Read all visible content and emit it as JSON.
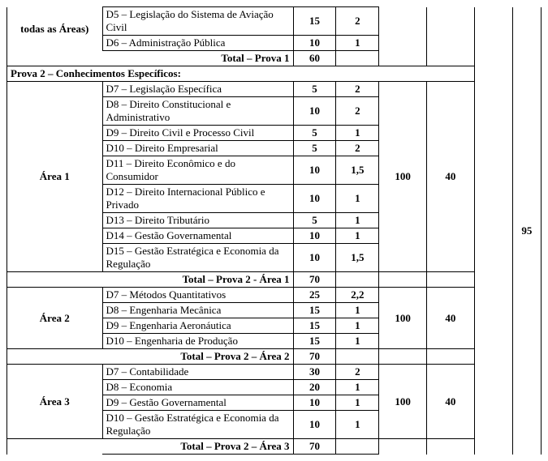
{
  "header_area_label": "todas as Áreas)",
  "prova1": {
    "rows": [
      {
        "desc": "D5 – Legislação do Sistema de Aviação Civil",
        "c1": "15",
        "c2": "2"
      },
      {
        "desc": "D6 – Administração Pública",
        "c1": "10",
        "c2": "1"
      }
    ],
    "total_label": "Total – Prova 1",
    "total_val": "60"
  },
  "prova2_header": "Prova 2 – Conhecimentos Específicos:",
  "area1": {
    "label": "Área 1",
    "rows": [
      {
        "desc": "D7 – Legislação Específica",
        "c1": "5",
        "c2": "2"
      },
      {
        "desc": "D8 – Direito Constitucional e Administrativo",
        "c1": "10",
        "c2": "2"
      },
      {
        "desc": "D9 – Direito Civil e Processo Civil",
        "c1": "5",
        "c2": "1"
      },
      {
        "desc": "D10 – Direito Empresarial",
        "c1": "5",
        "c2": "2"
      },
      {
        "desc": "D11 – Direito Econômico e do Consumidor",
        "c1": "10",
        "c2": "1,5"
      },
      {
        "desc": "D12 – Direito Internacional Público e Privado",
        "c1": "10",
        "c2": "1"
      },
      {
        "desc": "D13 – Direito Tributário",
        "c1": "5",
        "c2": "1"
      },
      {
        "desc": "D14 – Gestão Governamental",
        "c1": "10",
        "c2": "1"
      },
      {
        "desc": "D15 – Gestão Estratégica e Economia da Regulação",
        "c1": "10",
        "c2": "1,5"
      }
    ],
    "c3": "100",
    "c4": "40",
    "total_label": "Total – Prova 2 -  Área 1",
    "total_val": "70"
  },
  "area2": {
    "label": "Área 2",
    "rows": [
      {
        "desc": "D7 – Métodos Quantitativos",
        "c1": "25",
        "c2": "2,2"
      },
      {
        "desc": "D8 – Engenharia Mecânica",
        "c1": "15",
        "c2": "1"
      },
      {
        "desc": "D9 – Engenharia Aeronáutica",
        "c1": "15",
        "c2": "1"
      },
      {
        "desc": "D10 – Engenharia de Produção",
        "c1": "15",
        "c2": "1"
      }
    ],
    "c3": "100",
    "c4": "40",
    "total_label": "Total – Prova 2 – Área 2",
    "total_val": "70"
  },
  "area3": {
    "label": "Área 3",
    "rows": [
      {
        "desc": "D7 – Contabilidade",
        "c1": "30",
        "c2": "2"
      },
      {
        "desc": "D8 – Economia",
        "c1": "20",
        "c2": "1"
      },
      {
        "desc": "D9 – Gestão Governamental",
        "c1": "10",
        "c2": "1"
      },
      {
        "desc": "D10 – Gestão Estratégica e Economia da Regulação",
        "c1": "10",
        "c2": "1"
      }
    ],
    "c3": "100",
    "c4": "40",
    "total_label": "Total – Prova 2 – Área 3",
    "total_val": "70"
  },
  "grand_total": "95"
}
